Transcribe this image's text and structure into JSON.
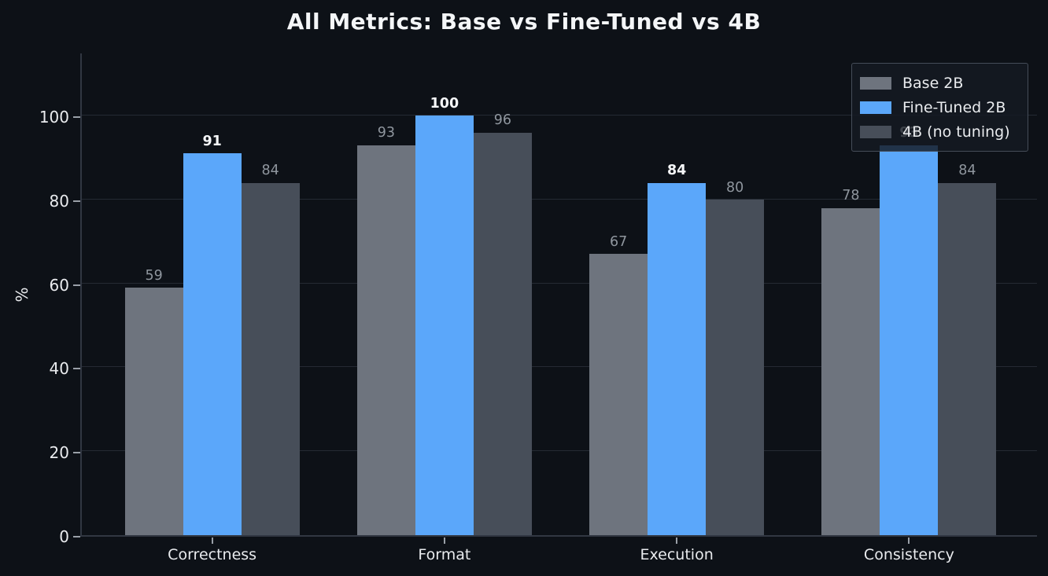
{
  "chart_data": {
    "type": "bar",
    "title": "All Metrics: Base vs Fine-Tuned vs 4B",
    "ylabel": "%",
    "categories": [
      "Correctness",
      "Format",
      "Execution",
      "Consistency"
    ],
    "series": [
      {
        "name": "Base 2B",
        "color": "#6e747e",
        "values": [
          59,
          93,
          67,
          78
        ],
        "label_color": "#8f969e",
        "label_bold": false
      },
      {
        "name": "Fine-Tuned 2B",
        "color": "#5ba7fa",
        "values": [
          91,
          100,
          84,
          93
        ],
        "label_color": "#f5f7f9",
        "label_bold": true
      },
      {
        "name": "4B (no tuning)",
        "color": "#474e59",
        "values": [
          84,
          96,
          80,
          84
        ],
        "label_color": "#8f969e",
        "label_bold": false
      }
    ],
    "y_ticks": [
      0,
      20,
      40,
      60,
      80,
      100
    ],
    "ylim": [
      0,
      115.2
    ],
    "grid": true,
    "legend_position": "upper right",
    "background_color": "#0d1117"
  }
}
